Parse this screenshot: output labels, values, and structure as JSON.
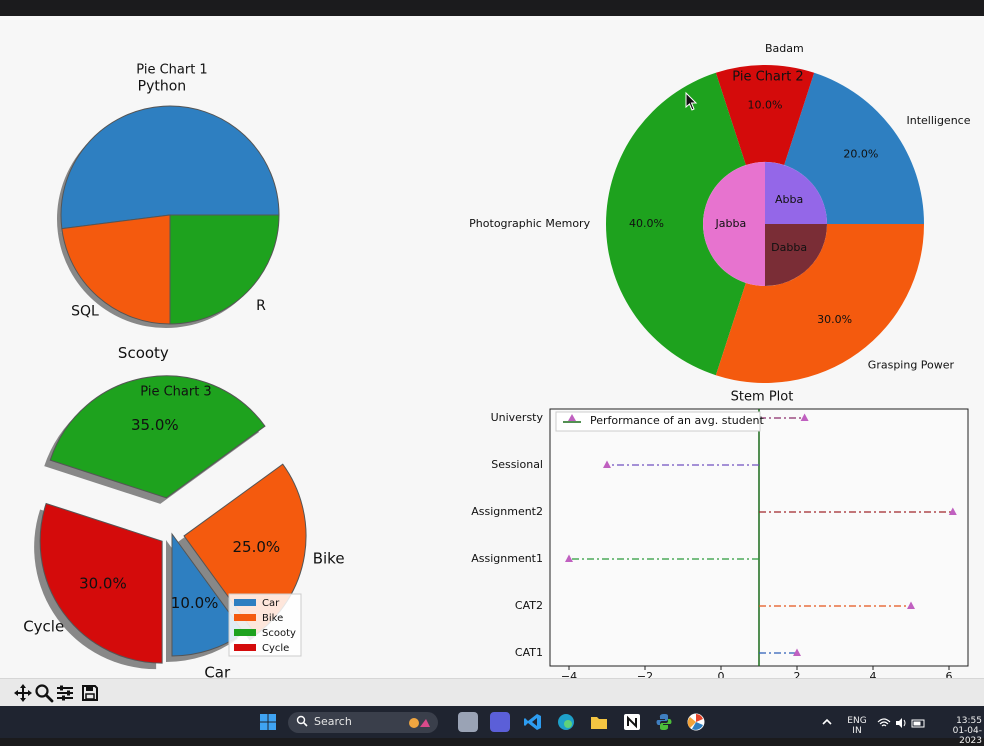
{
  "chart_data": [
    {
      "type": "pie",
      "title": "Pie Chart 1",
      "labels": [
        "Python",
        "SQL",
        "R"
      ],
      "values": [
        52,
        23,
        25
      ],
      "colors": [
        "#2e7fc1",
        "#f45a0e",
        "#1ea21e"
      ],
      "autopct": false,
      "shadow": true
    },
    {
      "type": "pie",
      "title": "Pie Chart 2",
      "rings": [
        {
          "name": "outer",
          "labels": [
            "Intelligence",
            "Badam",
            "Photographic Memory",
            "Grasping Power"
          ],
          "values": [
            20,
            10,
            40,
            30
          ],
          "pct_labels": [
            "20.0%",
            "10.0%",
            "40.0%",
            "30.0%"
          ],
          "colors": [
            "#2e7fc1",
            "#d40b0b",
            "#1ea21e",
            "#f45a0e"
          ]
        },
        {
          "name": "inner",
          "labels": [
            "Abba",
            "Jabba",
            "Dabba"
          ],
          "values": [
            25,
            50,
            25
          ],
          "colors": [
            "#9467e8",
            "#e773cf",
            "#7a2d36"
          ]
        }
      ]
    },
    {
      "type": "pie",
      "title": "Pie Chart 3",
      "labels": [
        "Car",
        "Bike",
        "Scooty",
        "Cycle"
      ],
      "values": [
        10,
        25,
        35,
        30
      ],
      "pct_labels": [
        "10.0%",
        "25.0%",
        "35.0%",
        "30.0%"
      ],
      "explode": [
        0,
        0.1,
        0.3,
        0.1
      ],
      "colors": [
        "#2e7fc1",
        "#f45a0e",
        "#1ea21e",
        "#d40b0b"
      ],
      "legend": [
        "Car",
        "Bike",
        "Scooty",
        "Cycle"
      ],
      "legend_position": "lower right",
      "shadow": true
    },
    {
      "type": "stem",
      "title": "Stem Plot",
      "categories": [
        "CAT1",
        "CAT2",
        "Assignment1",
        "Assignment2",
        "Sessional",
        "Universty"
      ],
      "values": [
        2,
        5,
        -4,
        6.1,
        -3,
        2.2
      ],
      "baseline": 1,
      "orientation": "horizontal",
      "xlim": [
        -4.5,
        6.5
      ],
      "xticks": [
        -4,
        -2,
        0,
        2,
        4,
        6
      ],
      "line_colors": [
        "#2d5fb8",
        "#e3531b",
        "#2a9a3a",
        "#a0262b",
        "#7050c0",
        "#8a2c6a"
      ],
      "marker_color": "#c060c0",
      "baseline_color": "#1a6b1a",
      "legend": [
        "Performance of an avg. student"
      ],
      "legend_position": "upper left"
    }
  ],
  "toolbar": {
    "buttons": [
      "pan-icon",
      "zoom-icon",
      "configure-icon",
      "save-icon"
    ]
  },
  "taskbar": {
    "search_label": "Search",
    "lang_line1": "ENG",
    "lang_line2": "IN",
    "time": "13:55",
    "date": "01-04-2023"
  }
}
